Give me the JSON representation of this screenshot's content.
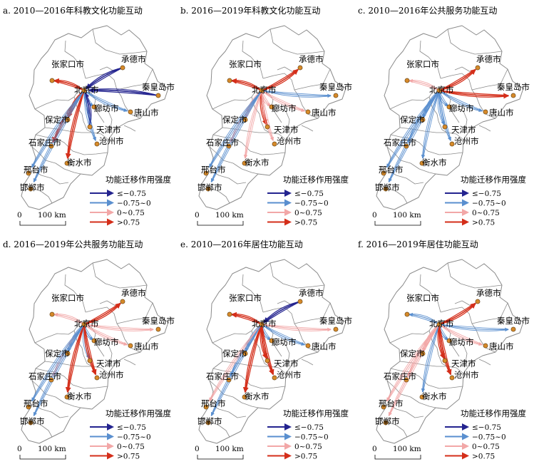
{
  "colors": {
    "strong_negative": "#23238f",
    "negative": "#5a8fcf",
    "positive": "#f2a7a7",
    "strong_positive": "#d42e1a",
    "city_fill": "#d68a2a",
    "boundary": "#8a8a8a"
  },
  "legend": {
    "title": "功能迁移作用强度",
    "classes": [
      {
        "key": "strong_negative",
        "label": "≤−0.75"
      },
      {
        "key": "negative",
        "label": "−0.75~0"
      },
      {
        "key": "positive",
        "label": "0~0.75"
      },
      {
        "key": "strong_positive",
        "label": ">0.75"
      }
    ]
  },
  "scale_bar": {
    "zero": "0",
    "distance": "100 km"
  },
  "cities": [
    {
      "id": "beijing",
      "name": "北京市"
    },
    {
      "id": "zhangjiakou",
      "name": "张家口市"
    },
    {
      "id": "chengde",
      "name": "承德市"
    },
    {
      "id": "qinhuangdao",
      "name": "秦皇岛市"
    },
    {
      "id": "tangshan",
      "name": "唐山市"
    },
    {
      "id": "langfang",
      "name": "廊坊市"
    },
    {
      "id": "tianjin",
      "name": "天津市"
    },
    {
      "id": "cangzhou",
      "name": "沧州市"
    },
    {
      "id": "baoding",
      "name": "保定市"
    },
    {
      "id": "shijiazhuang",
      "name": "石家庄市"
    },
    {
      "id": "hengshui",
      "name": "衡水市"
    },
    {
      "id": "xingtai",
      "name": "邢台市"
    },
    {
      "id": "handan",
      "name": "邯郸市"
    }
  ],
  "panels": [
    {
      "title": "a. 2010—2016年科教文化功能互动",
      "flows": [
        {
          "to": "zhangjiakou",
          "cls": "strong_positive",
          "dir": "out"
        },
        {
          "to": "chengde",
          "cls": "strong_negative",
          "dir": "in"
        },
        {
          "to": "qinhuangdao",
          "cls": "strong_negative",
          "dir": "in"
        },
        {
          "to": "tangshan",
          "cls": "negative",
          "dir": "out"
        },
        {
          "to": "langfang",
          "cls": "negative",
          "dir": "out"
        },
        {
          "to": "tianjin",
          "cls": "strong_negative",
          "dir": "in"
        },
        {
          "to": "cangzhou",
          "cls": "negative",
          "dir": "out"
        },
        {
          "to": "baoding",
          "cls": "strong_positive",
          "dir": "out"
        },
        {
          "to": "shijiazhuang",
          "cls": "strong_positive",
          "dir": "out"
        },
        {
          "to": "hengshui",
          "cls": "strong_positive",
          "dir": "out"
        },
        {
          "to": "xingtai",
          "cls": "negative",
          "dir": "out"
        },
        {
          "to": "handan",
          "cls": "negative",
          "dir": "out"
        }
      ]
    },
    {
      "title": "b. 2016—2019年科教文化功能互动",
      "flows": [
        {
          "to": "zhangjiakou",
          "cls": "strong_positive",
          "dir": "out"
        },
        {
          "to": "chengde",
          "cls": "strong_positive",
          "dir": "out"
        },
        {
          "to": "qinhuangdao",
          "cls": "negative",
          "dir": "out"
        },
        {
          "to": "tangshan",
          "cls": "positive",
          "dir": "out"
        },
        {
          "to": "langfang",
          "cls": "positive",
          "dir": "out"
        },
        {
          "to": "tianjin",
          "cls": "strong_positive",
          "dir": "out"
        },
        {
          "to": "cangzhou",
          "cls": "positive",
          "dir": "out"
        },
        {
          "to": "baoding",
          "cls": "positive",
          "dir": "out"
        },
        {
          "to": "shijiazhuang",
          "cls": "positive",
          "dir": "out"
        },
        {
          "to": "hengshui",
          "cls": "positive",
          "dir": "out"
        },
        {
          "to": "xingtai",
          "cls": "negative",
          "dir": "out"
        },
        {
          "to": "handan",
          "cls": "negative",
          "dir": "out"
        }
      ]
    },
    {
      "title": "c. 2010—2016年公共服务功能互动",
      "flows": [
        {
          "to": "zhangjiakou",
          "cls": "positive",
          "dir": "out"
        },
        {
          "to": "chengde",
          "cls": "strong_positive",
          "dir": "out"
        },
        {
          "to": "qinhuangdao",
          "cls": "strong_positive",
          "dir": "out"
        },
        {
          "to": "tangshan",
          "cls": "negative",
          "dir": "out"
        },
        {
          "to": "langfang",
          "cls": "negative",
          "dir": "out"
        },
        {
          "to": "tianjin",
          "cls": "negative",
          "dir": "out"
        },
        {
          "to": "cangzhou",
          "cls": "negative",
          "dir": "out"
        },
        {
          "to": "baoding",
          "cls": "negative",
          "dir": "out"
        },
        {
          "to": "shijiazhuang",
          "cls": "negative",
          "dir": "out"
        },
        {
          "to": "hengshui",
          "cls": "negative",
          "dir": "out"
        },
        {
          "to": "xingtai",
          "cls": "negative",
          "dir": "out"
        },
        {
          "to": "handan",
          "cls": "negative",
          "dir": "out"
        }
      ]
    },
    {
      "title": "d. 2016—2019年公共服务功能互动",
      "flows": [
        {
          "to": "zhangjiakou",
          "cls": "positive",
          "dir": "out"
        },
        {
          "to": "chengde",
          "cls": "strong_positive",
          "dir": "out"
        },
        {
          "to": "qinhuangdao",
          "cls": "positive",
          "dir": "out"
        },
        {
          "to": "tangshan",
          "cls": "positive",
          "dir": "out"
        },
        {
          "to": "langfang",
          "cls": "negative",
          "dir": "out"
        },
        {
          "to": "tianjin",
          "cls": "negative",
          "dir": "out"
        },
        {
          "to": "cangzhou",
          "cls": "strong_positive",
          "dir": "out"
        },
        {
          "to": "baoding",
          "cls": "negative",
          "dir": "out"
        },
        {
          "to": "shijiazhuang",
          "cls": "positive",
          "dir": "out"
        },
        {
          "to": "hengshui",
          "cls": "strong_positive",
          "dir": "out"
        },
        {
          "to": "xingtai",
          "cls": "negative",
          "dir": "out"
        },
        {
          "to": "handan",
          "cls": "negative",
          "dir": "out"
        }
      ]
    },
    {
      "title": "e. 2010—2016年居住功能互动",
      "flows": [
        {
          "to": "zhangjiakou",
          "cls": "strong_positive",
          "dir": "out"
        },
        {
          "to": "chengde",
          "cls": "strong_negative",
          "dir": "in"
        },
        {
          "to": "qinhuangdao",
          "cls": "positive",
          "dir": "out"
        },
        {
          "to": "tangshan",
          "cls": "negative",
          "dir": "out"
        },
        {
          "to": "langfang",
          "cls": "negative",
          "dir": "out"
        },
        {
          "to": "tianjin",
          "cls": "strong_positive",
          "dir": "out"
        },
        {
          "to": "cangzhou",
          "cls": "strong_positive",
          "dir": "out"
        },
        {
          "to": "baoding",
          "cls": "negative",
          "dir": "out"
        },
        {
          "to": "shijiazhuang",
          "cls": "negative",
          "dir": "out"
        },
        {
          "to": "hengshui",
          "cls": "strong_positive",
          "dir": "out"
        },
        {
          "to": "xingtai",
          "cls": "positive",
          "dir": "out"
        },
        {
          "to": "handan",
          "cls": "negative",
          "dir": "out"
        }
      ]
    },
    {
      "title": "f. 2016—2019年居住功能互动",
      "flows": [
        {
          "to": "zhangjiakou",
          "cls": "negative",
          "dir": "out"
        },
        {
          "to": "chengde",
          "cls": "strong_positive",
          "dir": "out"
        },
        {
          "to": "qinhuangdao",
          "cls": "negative",
          "dir": "out"
        },
        {
          "to": "tangshan",
          "cls": "positive",
          "dir": "out"
        },
        {
          "to": "langfang",
          "cls": "negative",
          "dir": "out"
        },
        {
          "to": "tianjin",
          "cls": "strong_positive",
          "dir": "out"
        },
        {
          "to": "cangzhou",
          "cls": "strong_positive",
          "dir": "out"
        },
        {
          "to": "baoding",
          "cls": "positive",
          "dir": "out"
        },
        {
          "to": "shijiazhuang",
          "cls": "positive",
          "dir": "out"
        },
        {
          "to": "hengshui",
          "cls": "negative",
          "dir": "out"
        },
        {
          "to": "xingtai",
          "cls": "positive",
          "dir": "out"
        },
        {
          "to": "handan",
          "cls": "positive",
          "dir": "out"
        }
      ]
    }
  ]
}
